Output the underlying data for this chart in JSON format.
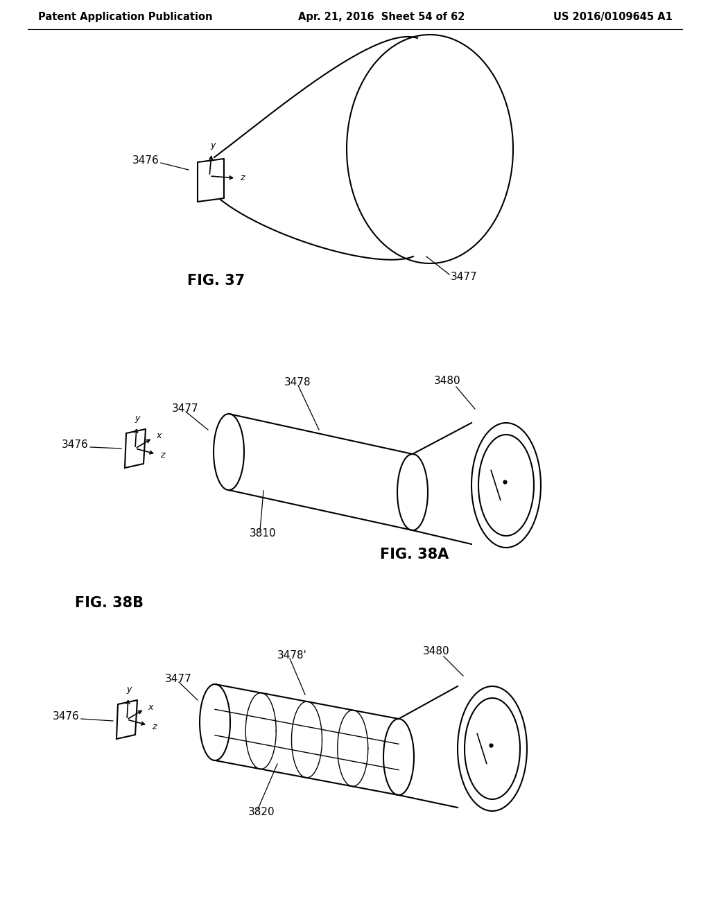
{
  "header_left": "Patent Application Publication",
  "header_mid": "Apr. 21, 2016  Sheet 54 of 62",
  "header_right": "US 2016/0109645 A1",
  "fig37_label": "FIG. 37",
  "fig38a_label": "FIG. 38A",
  "fig38b_label": "FIG. 38B",
  "bg_color": "#ffffff",
  "line_color": "#000000",
  "font_size_header": 10.5,
  "font_size_fig": 15,
  "font_size_ref": 11
}
